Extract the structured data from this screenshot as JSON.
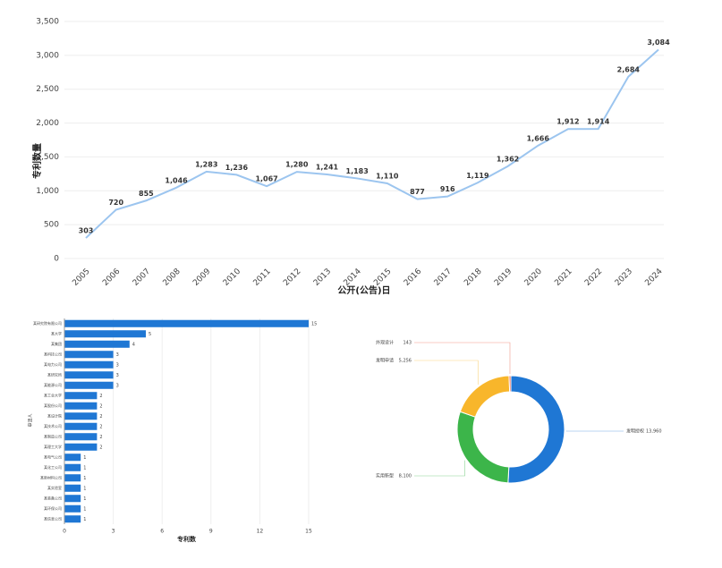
{
  "chart_data": [
    {
      "type": "line",
      "x_label": "公开(公告)日",
      "y_label": "专利数量",
      "color": "#9cc5ef",
      "categories": [
        "2005",
        "2006",
        "2007",
        "2008",
        "2009",
        "2010",
        "2011",
        "2012",
        "2013",
        "2014",
        "2015",
        "2016",
        "2017",
        "2018",
        "2019",
        "2020",
        "2021",
        "2022",
        "2023",
        "2024"
      ],
      "values": [
        303,
        720,
        855,
        1046,
        1283,
        1236,
        1067,
        1280,
        1241,
        1183,
        1110,
        877,
        916,
        1119,
        1362,
        1666,
        1912,
        1914,
        2684,
        3084
      ],
      "value_labels": [
        "303",
        "720",
        "855",
        "1,046",
        "1,283",
        "1,236",
        "1,067",
        "1,280",
        "1,241",
        "1,183",
        "1,110",
        "877",
        "916",
        "1,119",
        "1,362",
        "1,666",
        "1,912",
        "1,914",
        "2,684",
        "3,084"
      ],
      "ylim": [
        0,
        3500
      ],
      "yticks": [
        0,
        500,
        {
          "value": 1000,
          "label": "1,000"
        },
        {
          "value": 1500,
          "label": "1,500"
        },
        {
          "value": 2000,
          "label": "2,000"
        },
        {
          "value": 2500,
          "label": "2,500"
        },
        {
          "value": 3000,
          "label": "3,000"
        },
        {
          "value": 3500,
          "label": "3,500"
        }
      ],
      "grid": true
    },
    {
      "type": "hbar",
      "x_label": "专利数",
      "y_label": "申请人",
      "color": "#1f77d4",
      "categories": [
        "某研究院有限公司",
        "某大学",
        "某集团",
        "某科技公司",
        "某电力公司",
        "某研究所",
        "某能源公司",
        "某工业大学",
        "某股份公司",
        "某设计院",
        "某技术公司",
        "某制造公司",
        "某理工大学",
        "某电气公司",
        "某化工公司",
        "某新材料公司",
        "某实验室",
        "某装备公司",
        "某环保公司",
        "某信息公司"
      ],
      "values": [
        15,
        5,
        4,
        3,
        3,
        3,
        3,
        2,
        2,
        2,
        2,
        2,
        2,
        1,
        1,
        1,
        1,
        1,
        1,
        1
      ],
      "xlim": [
        0,
        15
      ],
      "xticks": [
        0,
        3,
        6,
        9,
        12,
        15
      ],
      "grid": true
    },
    {
      "type": "donut",
      "categories": [
        "发明授权",
        "实用新型",
        "发明申请",
        "外观设计"
      ],
      "values": [
        13960,
        8100,
        5256,
        143
      ],
      "value_labels": [
        "13,960",
        "8,100",
        "5,256",
        "143"
      ],
      "colors": [
        "#1f77d4",
        "#3cb54a",
        "#f8b62b",
        "#e8553e"
      ]
    }
  ]
}
